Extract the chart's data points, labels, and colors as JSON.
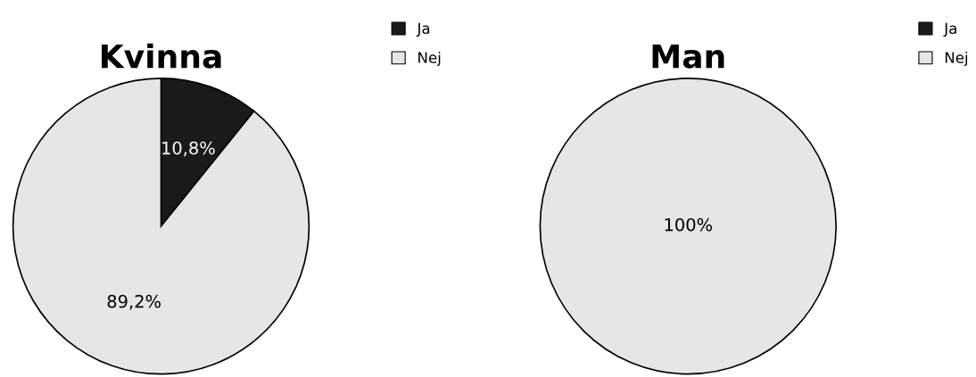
{
  "chart_data": [
    {
      "type": "pie",
      "title": "Kvinna",
      "categories": [
        "Ja",
        "Nej"
      ],
      "values": [
        10.8,
        89.2
      ],
      "colors": [
        "#1a1a1a",
        "#e6e6e6"
      ],
      "value_labels": [
        "10,8%",
        "89,2%"
      ],
      "legend": "top right"
    },
    {
      "type": "pie",
      "title": "Man",
      "categories": [
        "Ja",
        "Nej"
      ],
      "values": [
        0,
        100
      ],
      "colors": [
        "#1a1a1a",
        "#e6e6e6"
      ],
      "value_labels": [
        null,
        "100%"
      ],
      "legend": "top right"
    }
  ]
}
